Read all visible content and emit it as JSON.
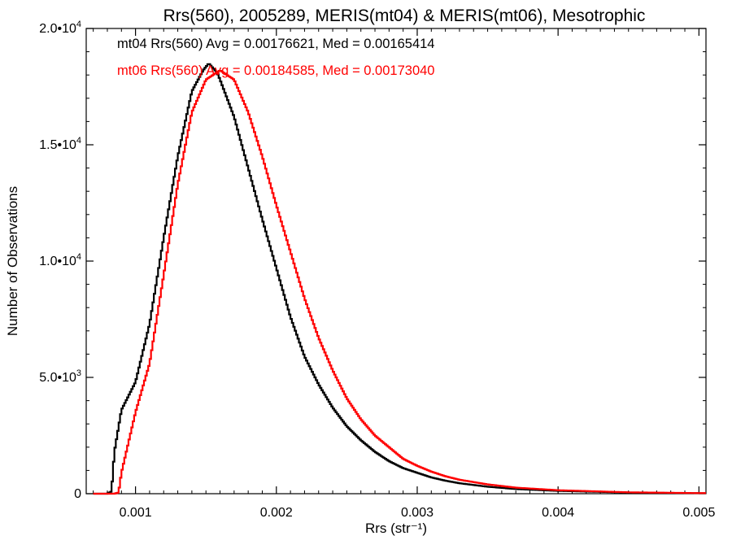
{
  "chart_data": {
    "type": "line",
    "title": "Rrs(560), 2005289, MERIS(mt04) & MERIS(mt06), Mesotrophic",
    "xlabel": "Rrs (str⁻¹)",
    "ylabel": "Number of Observations",
    "xlim": [
      0.00065,
      0.00505
    ],
    "ylim": [
      0,
      20000
    ],
    "x_ticks": [
      {
        "value": 0.001,
        "label": "0.001"
      },
      {
        "value": 0.002,
        "label": "0.002"
      },
      {
        "value": 0.003,
        "label": "0.003"
      },
      {
        "value": 0.004,
        "label": "0.004"
      },
      {
        "value": 0.005,
        "label": "0.005"
      }
    ],
    "y_ticks": [
      {
        "value": 0,
        "mant": "0",
        "exp": ""
      },
      {
        "value": 5000,
        "mant": "5.0•10",
        "exp": "3"
      },
      {
        "value": 10000,
        "mant": "1.0•10",
        "exp": "4"
      },
      {
        "value": 15000,
        "mant": "1.5•10",
        "exp": "4"
      },
      {
        "value": 20000,
        "mant": "2.0•10",
        "exp": "4"
      }
    ],
    "grid": false,
    "legend_position": "top-left",
    "series": [
      {
        "name": "mt04",
        "legend": "mt04 Rrs(560) Avg = 0.00176621, Med = 0.00165414",
        "color": "#000000",
        "x": [
          0.0007,
          0.0008,
          0.00083,
          0.00085,
          0.0009,
          0.001,
          0.0011,
          0.0012,
          0.0013,
          0.0014,
          0.00148,
          0.00152,
          0.00158,
          0.0016,
          0.0017,
          0.0018,
          0.0019,
          0.002,
          0.0021,
          0.0022,
          0.0023,
          0.0024,
          0.0025,
          0.0026,
          0.0027,
          0.0028,
          0.0029,
          0.003,
          0.0031,
          0.0032,
          0.0033,
          0.0035,
          0.0037,
          0.004,
          0.0045,
          0.005
        ],
        "y": [
          0,
          0,
          100,
          1800,
          3600,
          4800,
          7300,
          11000,
          14500,
          17300,
          18200,
          18500,
          18100,
          17800,
          16200,
          14000,
          11800,
          9700,
          7600,
          5900,
          4700,
          3700,
          2900,
          2300,
          1800,
          1400,
          1100,
          900,
          700,
          560,
          450,
          300,
          200,
          120,
          50,
          20
        ]
      },
      {
        "name": "mt06",
        "legend": "mt06 Rrs(560) Avg = 0.00184585, Med = 0.00173040",
        "color": "#ff0000",
        "x": [
          0.0007,
          0.00085,
          0.00088,
          0.0009,
          0.001,
          0.0011,
          0.0012,
          0.0013,
          0.0014,
          0.0015,
          0.0016,
          0.0017,
          0.0018,
          0.0019,
          0.002,
          0.0021,
          0.0022,
          0.0023,
          0.0024,
          0.0025,
          0.0026,
          0.0027,
          0.0028,
          0.0029,
          0.003,
          0.0031,
          0.0032,
          0.0033,
          0.0035,
          0.0037,
          0.004,
          0.0045,
          0.005
        ],
        "y": [
          0,
          0,
          50,
          900,
          3500,
          5600,
          9400,
          13300,
          16400,
          17800,
          18200,
          17800,
          16400,
          14500,
          12400,
          10400,
          8400,
          6700,
          5300,
          4100,
          3200,
          2500,
          2000,
          1500,
          1200,
          950,
          750,
          600,
          400,
          260,
          150,
          60,
          25
        ]
      }
    ]
  }
}
